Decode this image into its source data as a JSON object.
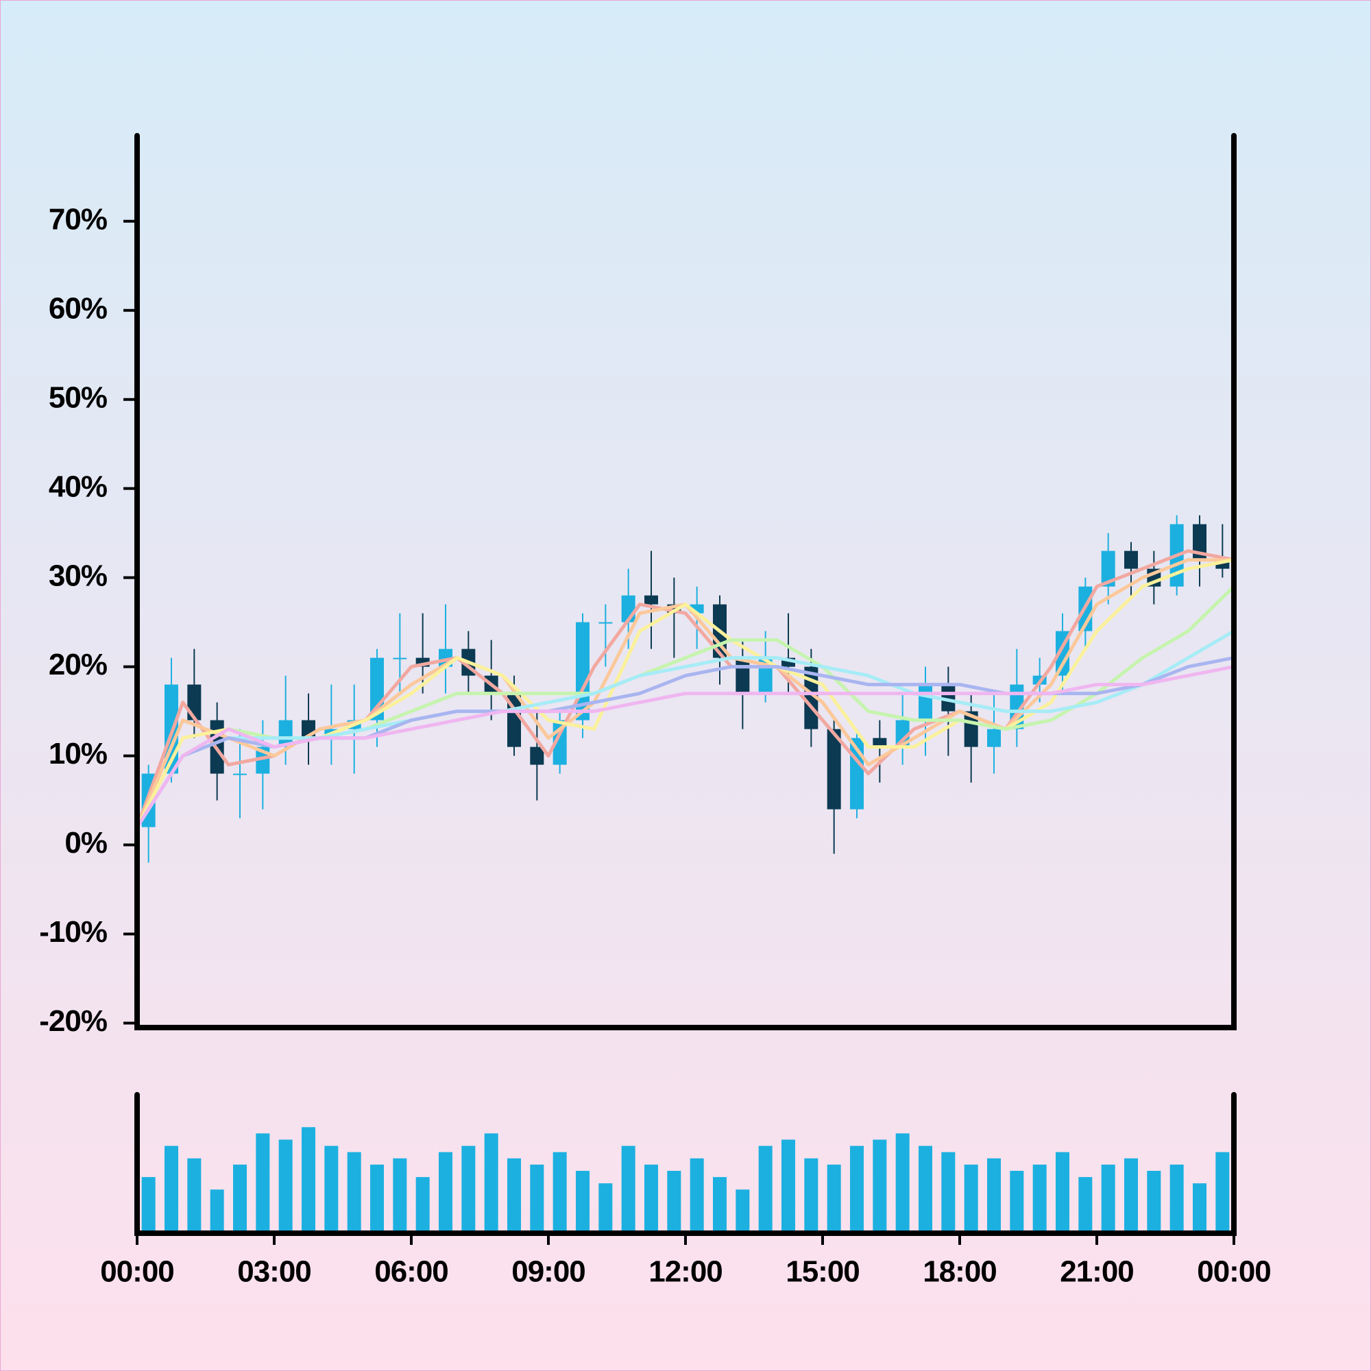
{
  "chart_data": {
    "type": "candlestick",
    "x": [
      0.25,
      0.75,
      1.25,
      1.75,
      2.25,
      2.75,
      3.25,
      3.75,
      4.25,
      4.75,
      5.25,
      5.75,
      6.25,
      6.75,
      7.25,
      7.75,
      8.25,
      8.75,
      9.25,
      9.75,
      10.25,
      10.75,
      11.25,
      11.75,
      12.25,
      12.75,
      13.25,
      13.75,
      14.25,
      14.75,
      15.25,
      15.75,
      16.25,
      16.75,
      17.25,
      17.75,
      18.25,
      18.75,
      19.25,
      19.75,
      20.25,
      20.75,
      21.25,
      21.75,
      22.25,
      22.75,
      23.25,
      23.75
    ],
    "open": [
      2,
      8,
      18,
      14,
      8,
      8,
      11,
      14,
      12,
      13,
      14,
      21,
      21,
      20,
      22,
      19,
      17,
      11,
      9,
      14,
      25,
      25,
      28,
      27,
      26,
      27,
      21,
      17,
      21,
      20,
      13,
      4,
      12,
      11,
      14,
      18,
      15,
      11,
      13,
      18,
      19,
      24,
      29,
      33,
      31,
      29,
      36,
      32
    ],
    "high": [
      9,
      21,
      22,
      16,
      13,
      14,
      19,
      17,
      18,
      18,
      22,
      26,
      26,
      27,
      24,
      23,
      19,
      15,
      15,
      26,
      27,
      31,
      33,
      30,
      29,
      28,
      23,
      24,
      26,
      22,
      14,
      13,
      14,
      17,
      20,
      20,
      17,
      17,
      22,
      21,
      26,
      30,
      35,
      34,
      33,
      37,
      37,
      36
    ],
    "low": [
      -2,
      7,
      12,
      5,
      3,
      4,
      9,
      9,
      9,
      8,
      11,
      17,
      17,
      17,
      17,
      14,
      10,
      5,
      8,
      12,
      20,
      22,
      22,
      21,
      22,
      18,
      13,
      16,
      17,
      11,
      -1,
      3,
      7,
      9,
      10,
      10,
      7,
      8,
      11,
      16,
      17,
      22,
      27,
      28,
      27,
      28,
      29,
      30
    ],
    "close": [
      8,
      18,
      14,
      8,
      8,
      11,
      14,
      12,
      13,
      14,
      21,
      21,
      20,
      22,
      19,
      17,
      11,
      9,
      14,
      25,
      25,
      28,
      27,
      26,
      27,
      21,
      17,
      21,
      20,
      13,
      4,
      12,
      11,
      14,
      18,
      15,
      11,
      13,
      18,
      19,
      24,
      29,
      33,
      31,
      29,
      36,
      32,
      31
    ],
    "up_color": "#1cb0e0",
    "down_color": "#0b3a52",
    "xlim": [
      0,
      24
    ],
    "ylim": [
      -20.5,
      79.6
    ],
    "yticks": [
      {
        "value": -20,
        "label": "-20%"
      },
      {
        "value": -10,
        "label": "-10%"
      },
      {
        "value": 0,
        "label": "0%"
      },
      {
        "value": 10,
        "label": "10%"
      },
      {
        "value": 20,
        "label": "20%"
      },
      {
        "value": 30,
        "label": "30%"
      },
      {
        "value": 40,
        "label": "40%"
      },
      {
        "value": 50,
        "label": "50%"
      },
      {
        "value": 60,
        "label": "60%"
      },
      {
        "value": 70,
        "label": "70%"
      }
    ],
    "xticks": [
      {
        "value": 0,
        "label": "00:00"
      },
      {
        "value": 3,
        "label": "03:00"
      },
      {
        "value": 6,
        "label": "06:00"
      },
      {
        "value": 9,
        "label": "09:00"
      },
      {
        "value": 12,
        "label": "12:00"
      },
      {
        "value": 15,
        "label": "15:00"
      },
      {
        "value": 18,
        "label": "18:00"
      },
      {
        "value": 21,
        "label": "21:00"
      },
      {
        "value": 24,
        "label": "00:00"
      }
    ],
    "lines": {
      "x": [
        0,
        1,
        2,
        3,
        4,
        5,
        6,
        7,
        8,
        9,
        10,
        11,
        12,
        13,
        14,
        15,
        16,
        17,
        18,
        19,
        20,
        21,
        22,
        23,
        24
      ],
      "series": [
        {
          "color": "#f2a8a0",
          "values": [
            2,
            16,
            9,
            10,
            13,
            14,
            20,
            21,
            17,
            10,
            20,
            27,
            26,
            20,
            20,
            14,
            8,
            13,
            15,
            13,
            20,
            29,
            31,
            33,
            32
          ]
        },
        {
          "color": "#fcc89a",
          "values": [
            2,
            14,
            12,
            10,
            13,
            14,
            18,
            21,
            19,
            12,
            16,
            26,
            27,
            21,
            20,
            16,
            9,
            12,
            15,
            13,
            18,
            27,
            30,
            32,
            32
          ]
        },
        {
          "color": "#fbf19c",
          "values": [
            2,
            12,
            13,
            11,
            12,
            14,
            17,
            21,
            19,
            14,
            13,
            24,
            27,
            23,
            20,
            18,
            11,
            11,
            14,
            13,
            16,
            24,
            29,
            31,
            32
          ]
        },
        {
          "color": "#c6f4ae",
          "values": [
            2,
            10,
            13,
            12,
            12,
            13,
            15,
            17,
            17,
            17,
            17,
            19,
            21,
            23,
            23,
            20,
            15,
            14,
            14,
            13,
            14,
            17,
            21,
            24,
            29
          ]
        },
        {
          "color": "#a6ecf6",
          "values": [
            2,
            10,
            12,
            12,
            12,
            13,
            14,
            15,
            15,
            16,
            17,
            19,
            20,
            21,
            21,
            20,
            19,
            17,
            16,
            15,
            15,
            16,
            18,
            21,
            24
          ]
        },
        {
          "color": "#a9b5f0",
          "values": [
            2,
            10,
            12,
            11,
            12,
            12,
            14,
            15,
            15,
            15,
            16,
            17,
            19,
            20,
            20,
            19,
            18,
            18,
            18,
            17,
            17,
            17,
            18,
            20,
            21
          ]
        },
        {
          "color": "#f0b6f0",
          "values": [
            2,
            10,
            13,
            11,
            12,
            12,
            13,
            14,
            15,
            15,
            15,
            16,
            17,
            17,
            17,
            17,
            17,
            17,
            17,
            17,
            17,
            18,
            18,
            19,
            20
          ]
        }
      ]
    },
    "volume": {
      "color": "#1cb0e0",
      "ylim": [
        0,
        100
      ],
      "values": [
        45,
        70,
        60,
        35,
        55,
        80,
        75,
        85,
        70,
        65,
        55,
        60,
        45,
        65,
        70,
        80,
        60,
        55,
        65,
        50,
        40,
        70,
        55,
        50,
        60,
        45,
        35,
        70,
        75,
        60,
        55,
        70,
        75,
        80,
        70,
        65,
        55,
        60,
        50,
        55,
        65,
        45,
        55,
        60,
        50,
        55,
        40,
        65
      ]
    }
  }
}
